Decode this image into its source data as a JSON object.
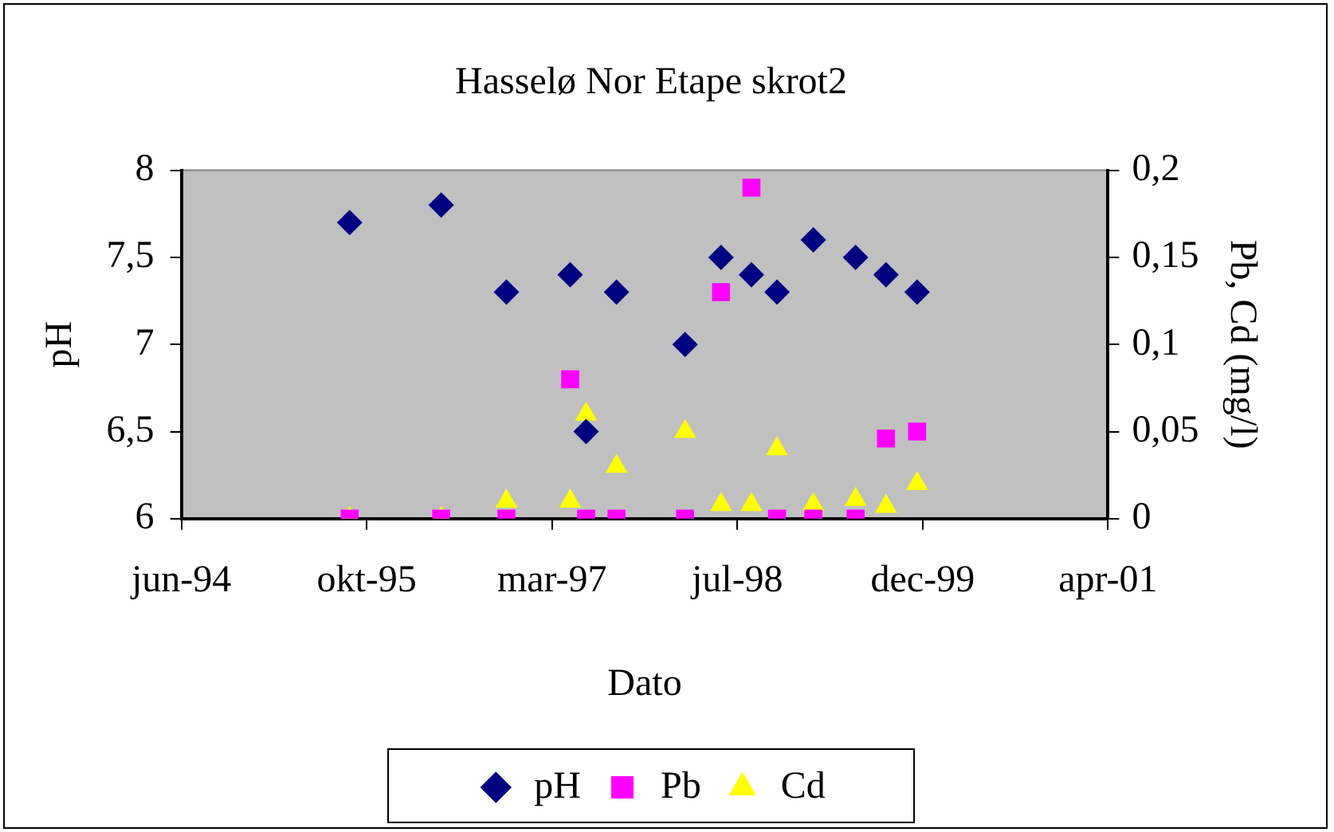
{
  "chart_data": {
    "type": "scatter",
    "title": "Hasselø Nor Etape skrot2",
    "xlabel": "Dato",
    "ylabel": "pH",
    "y2label": "Pb, Cd (mg/l)",
    "x": [
      "1995-09-12",
      "1996-05-16",
      "1996-11-08",
      "1997-04-29",
      "1997-06-11",
      "1997-09-01",
      "1998-03-05",
      "1998-06-10",
      "1998-08-31",
      "1998-11-08",
      "1999-02-14",
      "1999-06-08",
      "1999-08-29",
      "1999-11-21"
    ],
    "series": [
      {
        "name": "pH",
        "color": "#000080",
        "marker": "diamond",
        "values": [
          7.7,
          7.8,
          7.3,
          7.4,
          6.5,
          7.3,
          7.0,
          7.5,
          7.4,
          7.3,
          7.6,
          7.5,
          7.4,
          7.3
        ]
      },
      {
        "name": "Pb",
        "color": "#ff00ff",
        "marker": "square",
        "axis": "y2",
        "values": [
          0,
          0,
          0,
          0.08,
          0,
          0,
          0,
          0.13,
          0.19,
          0,
          0,
          0,
          0.046,
          0.05
        ]
      },
      {
        "name": "Cd",
        "color": "#ffff00",
        "marker": "triangle",
        "axis": "y2",
        "values": [
          0,
          0,
          0.01,
          0.01,
          0.06,
          0.03,
          0.05,
          0.008,
          0.008,
          0.04,
          0.008,
          0.011,
          0.007,
          0.02
        ]
      }
    ],
    "xlim": [
      "1994-06-15",
      "2001-04-19"
    ],
    "xticks": [
      {
        "value": "1994-06-15",
        "label": "jun-94"
      },
      {
        "value": "1995-10-28",
        "label": "okt-95"
      },
      {
        "value": "1997-03-11",
        "label": "mar-97"
      },
      {
        "value": "1998-07-24",
        "label": "jul-98"
      },
      {
        "value": "1999-12-06",
        "label": "dec-99"
      },
      {
        "value": "2001-04-19",
        "label": "apr-01"
      }
    ],
    "ylim": [
      6,
      8
    ],
    "yticks": [
      6,
      {
        "value": 6.5,
        "label": "6,5"
      },
      7,
      {
        "value": 7.5,
        "label": "7,5"
      },
      8
    ],
    "y2lim": [
      0,
      0.2
    ],
    "y2ticks": [
      0,
      {
        "value": 0.05,
        "label": "0,05"
      },
      {
        "value": 0.1,
        "label": "0,1"
      },
      {
        "value": 0.15,
        "label": "0,15"
      },
      {
        "value": 0.2,
        "label": "0,2"
      }
    ],
    "legend": "bottom"
  }
}
